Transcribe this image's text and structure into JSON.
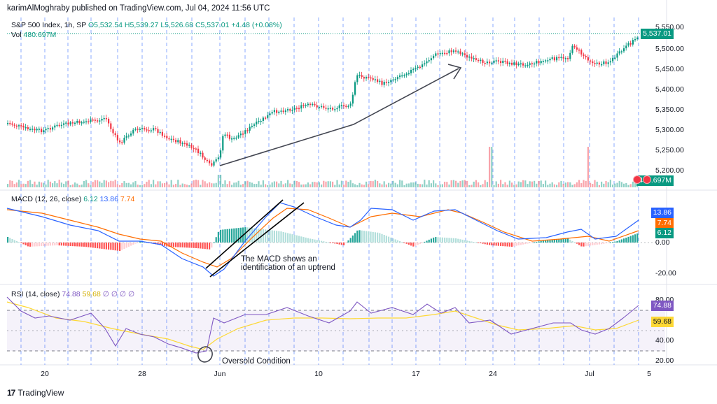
{
  "header": {
    "publisher_line": "karimAlMoghraby published on TradingView.com, Jul 04, 2024 11:56 UTC"
  },
  "price_pane": {
    "symbol": "S&P 500 Index, 1h, SP",
    "open": "O5,532.54",
    "high": "H5,539.27",
    "low": "L5,526.68",
    "close": "C5,537.01",
    "change": "+4.48 (+0.08%)",
    "vol_label": "Vol",
    "vol_value": "480.697M",
    "y_ticks": [
      "5,550.00",
      "5,500.00",
      "5,450.00",
      "5,400.00",
      "5,350.00",
      "5,300.00",
      "5,250.00",
      "5,200.00"
    ],
    "last_price_tag": "5,537.01",
    "last_volume_tag": "480.697M"
  },
  "macd_pane": {
    "title": "MACD (12, 26, close)",
    "v1": "6.12",
    "v2": "13.86",
    "v3": "7.74",
    "y_ticks": [
      "0.00",
      "-20.00"
    ],
    "tag_macd": "13.86",
    "tag_signal": "7.74",
    "tag_hist": "6.12",
    "note_line1": "The MACD shows an",
    "note_line2": "identification of an uptrend"
  },
  "rsi_pane": {
    "title": "RSI (14, close)",
    "v1": "74.88",
    "v2": "59.68",
    "dots": "∅ ∅ ∅ ∅",
    "y_ticks": [
      "80.00",
      "40.00",
      "20.00"
    ],
    "tag_rsi": "74.88",
    "tag_ma": "59.68",
    "note": "Oversold Condition"
  },
  "x_axis": {
    "labels": [
      "20",
      "28",
      "Jun",
      "10",
      "17",
      "24",
      "Jul",
      "5"
    ]
  },
  "footer": {
    "brand_mark": "17",
    "brand": "TradingView"
  },
  "colors": {
    "up": "#089981",
    "down": "#f23645",
    "macd_line": "#2962ff",
    "signal_line": "#ff6d00",
    "rsi_line": "#7e57c2",
    "rsi_ma": "#fdd835",
    "grid_dash": "#2962ff"
  }
}
